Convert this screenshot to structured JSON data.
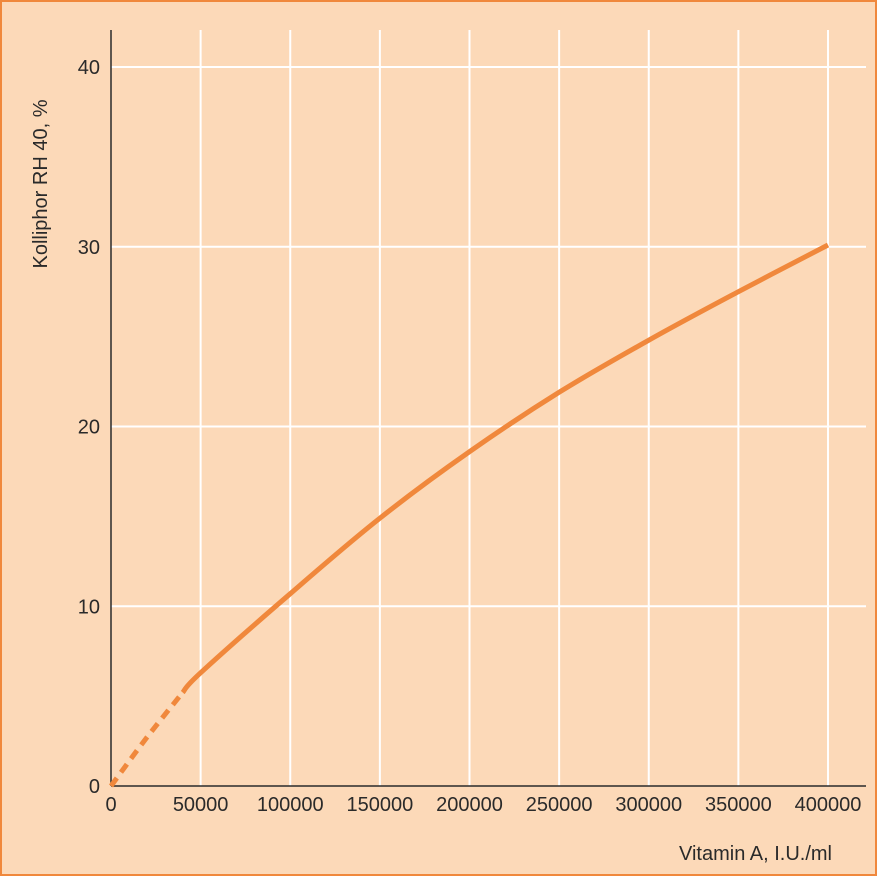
{
  "chart_data": {
    "type": "line",
    "title": "",
    "xlabel": "Vitamin A, I.U./ml",
    "ylabel": "Kolliphor RH 40, %",
    "xlim": [
      0,
      420000
    ],
    "ylim": [
      0,
      42
    ],
    "x_ticks": [
      0,
      50000,
      100000,
      150000,
      200000,
      250000,
      300000,
      350000,
      400000
    ],
    "y_ticks": [
      0,
      10,
      20,
      30,
      40
    ],
    "x_tick_labels": [
      "0",
      "50000",
      "100000",
      "150000",
      "200000",
      "250000",
      "300000",
      "350000",
      "400000"
    ],
    "y_tick_labels": [
      "0",
      "10",
      "20",
      "30",
      "40"
    ],
    "grid": true,
    "series": [
      {
        "color": "#f0883c",
        "extrapolated_segment": {
          "style": "dashed",
          "x": [
            0,
            20000,
            40000
          ],
          "y": [
            0,
            2.7,
            5.2
          ]
        },
        "solid_segment": {
          "style": "solid",
          "x": [
            40000,
            50000,
            100000,
            150000,
            200000,
            250000,
            300000,
            350000,
            400000
          ],
          "y": [
            5.2,
            6.3,
            10.7,
            14.9,
            18.6,
            21.9,
            24.8,
            27.5,
            30.1
          ]
        }
      }
    ],
    "colors": {
      "background": "#fcd9b8",
      "grid": "#ffffff",
      "axis": "#2a2a2a",
      "line": "#f0883c",
      "frame": "#f0883c"
    }
  }
}
